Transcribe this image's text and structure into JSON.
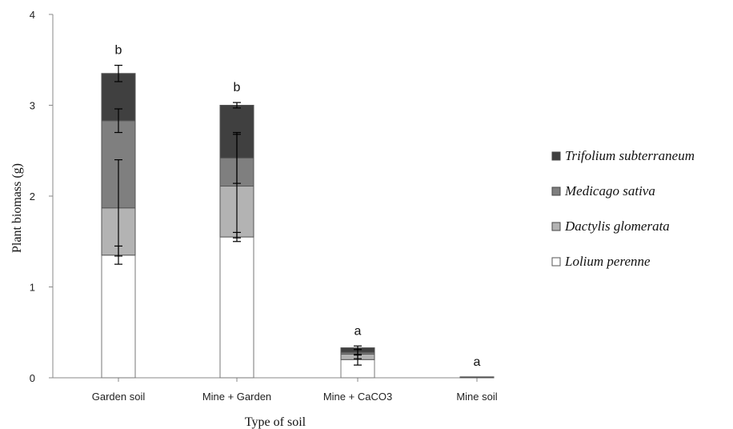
{
  "chart_data": {
    "type": "bar",
    "stacked": true,
    "xlabel": "Type of soil",
    "ylabel": "Plant biomass (g)",
    "ylim": [
      0,
      4
    ],
    "yticks": [
      "0",
      "1",
      "2",
      "3",
      "4"
    ],
    "categories": [
      "Garden soil",
      "Mine + Garden",
      "Mine + CaCO3",
      "Mine soil"
    ],
    "significance": [
      "b",
      "b",
      "a",
      "a"
    ],
    "legend_position": "right",
    "series": [
      {
        "name": "Lolium perenne",
        "color": "#ffffff",
        "values": [
          1.35,
          1.55,
          0.2,
          0.0
        ],
        "errors": [
          0.1,
          0.05,
          0.06,
          0.0
        ]
      },
      {
        "name": "Dactylis glomerata",
        "color": "#b3b3b3",
        "values": [
          0.52,
          0.56,
          0.06,
          0.0
        ],
        "errors": [
          0.53,
          0.57,
          0.05,
          0.0
        ]
      },
      {
        "name": "Medicago sativa",
        "color": "#7f7f7f",
        "values": [
          0.96,
          0.31,
          0.02,
          0.0
        ],
        "errors": [
          0.13,
          0.28,
          0.03,
          0.0
        ]
      },
      {
        "name": "Trifolium subterraneum",
        "color": "#404040",
        "values": [
          0.52,
          0.58,
          0.05,
          0.01
        ],
        "errors": [
          0.09,
          0.03,
          0.02,
          0.0
        ]
      }
    ]
  }
}
